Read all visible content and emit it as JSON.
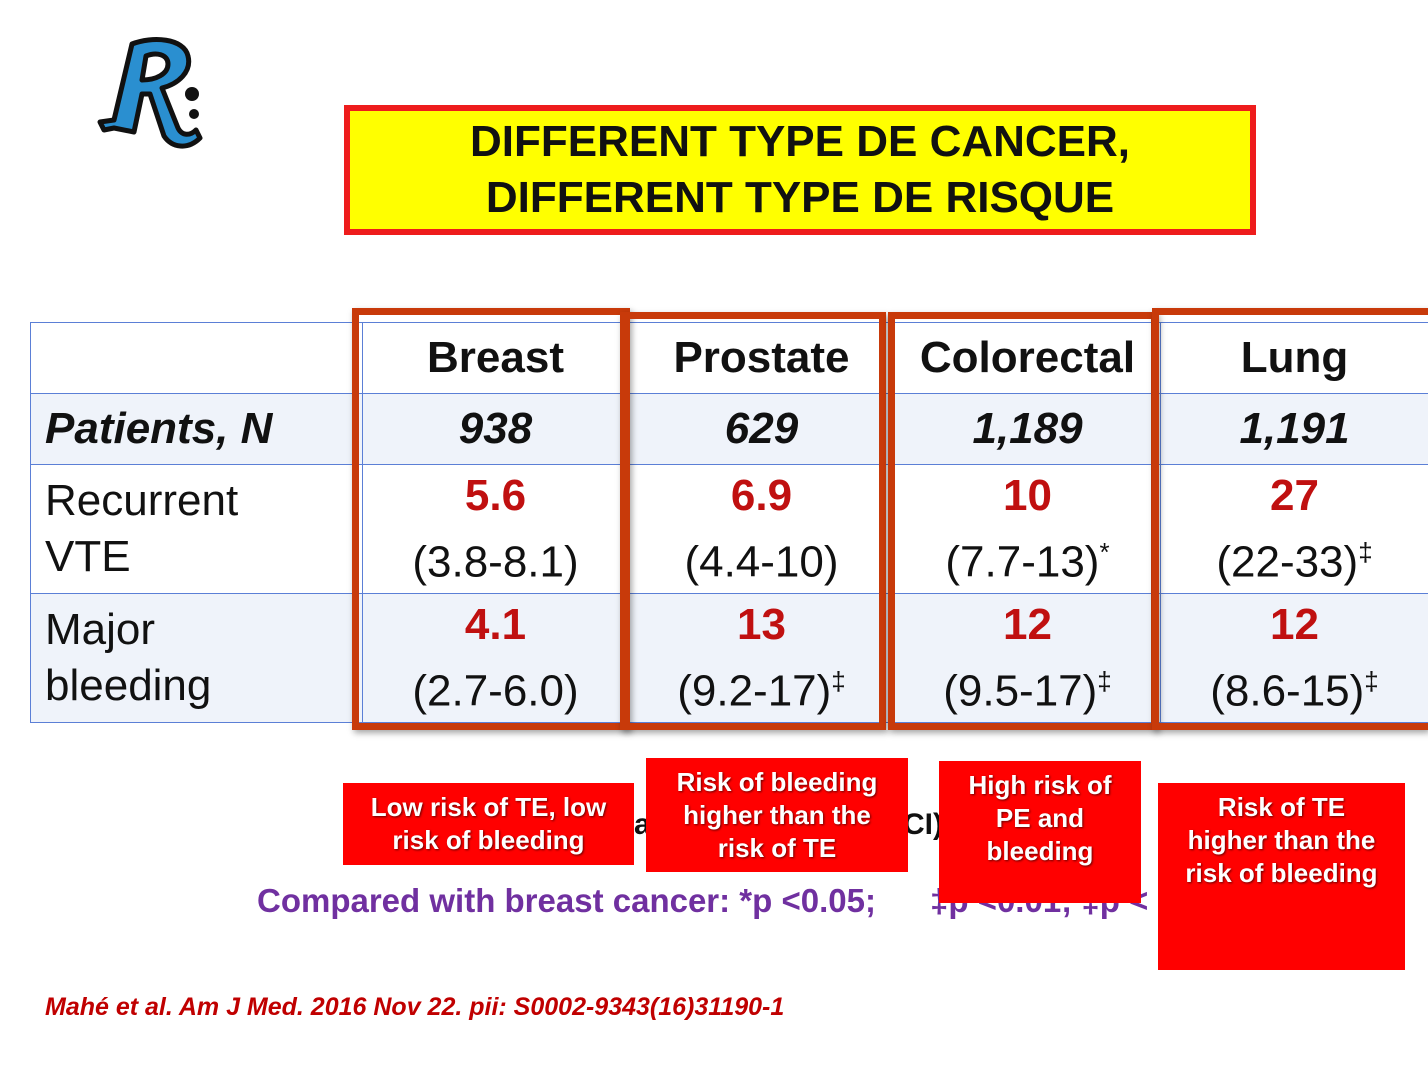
{
  "logo": {
    "letter": "R"
  },
  "title": {
    "line1": "DIFFERENT TYPE DE CANCER,",
    "line2": "DIFFERENT TYPE DE RISQUE"
  },
  "table": {
    "columns": [
      "Breast",
      "Prostate",
      "Colorectal",
      "Lung"
    ],
    "patients": {
      "label": "Patients, N",
      "values": [
        "938",
        "629",
        "1,189",
        "1,191"
      ]
    },
    "recurrent_vte": {
      "label_line1": "Recurrent",
      "label_line2": "VTE",
      "rates": [
        "5.6",
        "6.9",
        "10",
        "27"
      ],
      "ci": [
        "(3.8-8.1)",
        "(4.4-10)",
        "(7.7-13)",
        "(22-33)"
      ],
      "marks": [
        "",
        "",
        "*",
        "‡"
      ]
    },
    "major_bleeding": {
      "label_line1": "Major",
      "label_line2": "bleeding",
      "rates": [
        "4.1",
        "13",
        "12",
        "12"
      ],
      "ci": [
        "(2.7-6.0)",
        "(9.2-17)",
        "(9.5-17)",
        "(8.6-15)"
      ],
      "marks": [
        "",
        "‡",
        "‡",
        "‡"
      ]
    },
    "colors": {
      "border": "#5b7fd6",
      "rate": "#c01010",
      "frame": "#c83a0a"
    }
  },
  "footnote": {
    "left_fragment": "a",
    "right_fragment": "CI)"
  },
  "comparison": {
    "text": "Compared with breast cancer: *p <0.05;",
    "hidden_fragment": "‡p <0.01; ‡p <"
  },
  "callouts": {
    "breast": {
      "line1": "Low risk of TE, low",
      "line2": "risk of bleeding"
    },
    "prostate": {
      "line1": "Risk of bleeding",
      "line2": "higher than the",
      "line3": "risk of TE"
    },
    "colorectal": {
      "line1": "High risk of",
      "line2": "PE and",
      "line3": "bleeding"
    },
    "lung": {
      "line1": "Risk of TE",
      "line2": "higher than the",
      "line3": "risk of bleeding"
    }
  },
  "citation": {
    "text": "Mahé et al. Am J Med. 2016 Nov 22. pii: S0002-9343(16)31190-1"
  }
}
